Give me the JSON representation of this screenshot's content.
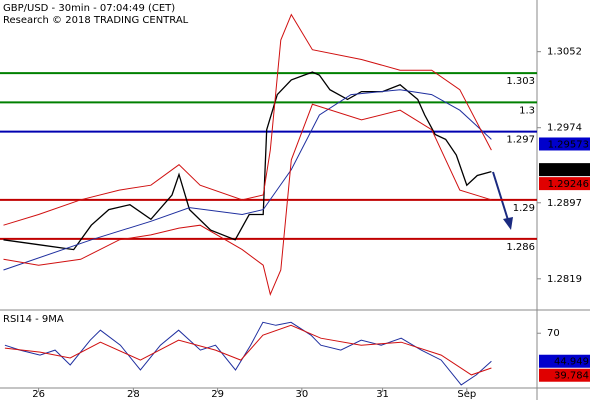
{
  "chart_data": [
    {
      "type": "line",
      "title": "GBP/USD - 30min - 07:04:49 (CET)",
      "subtitle": "Research © 2018 TRADING CENTRAL",
      "xlim": [
        0,
        153
      ],
      "ylim": [
        1.2787,
        1.3105
      ],
      "yticks": [
        1.3052,
        1.2974,
        1.2897,
        1.2819
      ],
      "series": [
        {
          "color": "#000000",
          "x": [
            1,
            11,
            21,
            26,
            31,
            37,
            43,
            49,
            51,
            54,
            60,
            67,
            71,
            75,
            76,
            79,
            83,
            89,
            91,
            94,
            99,
            103,
            109,
            114,
            119,
            121,
            124,
            127,
            130,
            133,
            136,
            140
          ],
          "values": [
            1.2859,
            1.2854,
            1.2849,
            1.2874,
            1.289,
            1.2895,
            1.288,
            1.2905,
            1.2926,
            1.289,
            1.2869,
            1.2859,
            1.2885,
            1.2885,
            1.2972,
            1.3008,
            1.3023,
            1.3031,
            1.3028,
            1.3013,
            1.3003,
            1.3011,
            1.3011,
            1.3018,
            1.3003,
            1.2987,
            1.2967,
            1.2962,
            1.2946,
            1.2915,
            1.2925,
            1.2929
          ]
        },
        {
          "color": "#1f2f9f",
          "x": [
            1,
            26,
            43,
            54,
            69,
            75,
            83,
            91,
            100,
            114,
            123,
            131,
            140
          ],
          "values": [
            1.2828,
            1.2859,
            1.2878,
            1.2892,
            1.2885,
            1.289,
            1.2931,
            1.2987,
            1.3008,
            1.3013,
            1.3008,
            1.2992,
            1.2962
          ]
        },
        {
          "color": "#d01010",
          "x": [
            1,
            11,
            23,
            34,
            43,
            51,
            57,
            69,
            75,
            77,
            80,
            83,
            89,
            103,
            114,
            123,
            131,
            140
          ],
          "values": [
            1.2874,
            1.2885,
            1.29,
            1.291,
            1.2915,
            1.2936,
            1.2915,
            1.29,
            1.2905,
            1.2951,
            1.3064,
            1.309,
            1.3054,
            1.3044,
            1.3033,
            1.3033,
            1.3013,
            1.2951
          ]
        },
        {
          "color": "#d01010",
          "x": [
            1,
            11,
            23,
            34,
            43,
            51,
            57,
            69,
            75,
            77,
            80,
            83,
            89,
            103,
            114,
            123,
            131,
            140
          ],
          "values": [
            1.2839,
            1.2833,
            1.2839,
            1.2859,
            1.2864,
            1.2871,
            1.2874,
            1.2849,
            1.2833,
            1.2803,
            1.2828,
            1.2941,
            1.2998,
            1.2982,
            1.2992,
            1.2972,
            1.291,
            1.29
          ]
        }
      ],
      "levels": [
        {
          "value": 1.303,
          "color": "#008000"
        },
        {
          "value": 1.3,
          "color": "#008000"
        },
        {
          "value": 1.297,
          "color": "#0000b0"
        },
        {
          "value": 1.29,
          "color": "#c00000"
        },
        {
          "value": 1.286,
          "color": "#c00000"
        }
      ],
      "markers": [
        {
          "value": 1.29573,
          "color": "#0000cc",
          "text_color": "#ffffff"
        },
        {
          "value": 1.2931,
          "color": "#000000",
          "text_color": "#ffffff"
        },
        {
          "value": 1.29246,
          "color": "#e00000",
          "text_color": "#000000"
        }
      ]
    },
    {
      "type": "line",
      "title": "RSI14 - 9MA",
      "xlim": [
        0,
        153
      ],
      "ylim": [
        21,
        89
      ],
      "yticks": [
        70
      ],
      "xticks": [
        {
          "value": 11,
          "label": "26"
        },
        {
          "value": 38,
          "label": "28"
        },
        {
          "value": 62,
          "label": "29"
        },
        {
          "value": 86,
          "label": "30"
        },
        {
          "value": 109,
          "label": "31"
        },
        {
          "value": 133,
          "label": "Sep"
        }
      ],
      "series": [
        {
          "color": "#1f2f9f",
          "x": [
            1.4,
            5.7,
            11.4,
            15.7,
            20,
            25.7,
            28.6,
            34.3,
            40,
            45.7,
            50.9,
            57.1,
            61.4,
            67.1,
            71.4,
            74.9,
            78.6,
            82.9,
            88.6,
            91.4,
            97.1,
            102.9,
            108.6,
            114.3,
            120,
            125.7,
            131.4,
            135.7,
            140
          ],
          "values": [
            59.3,
            54.9,
            50.4,
            54.9,
            41.6,
            63.8,
            72.7,
            59.3,
            37.1,
            59.3,
            72.7,
            54.9,
            59.3,
            37.1,
            59.3,
            79.8,
            77.1,
            79.8,
            68.2,
            59.3,
            54.9,
            63.8,
            59.3,
            65.6,
            54.9,
            46,
            23.8,
            32.7,
            44.9
          ]
        },
        {
          "color": "#d01010",
          "x": [
            1.4,
            11.4,
            20,
            28.6,
            40,
            50.9,
            61.4,
            68.6,
            74.9,
            82.9,
            91.4,
            102.9,
            114.3,
            125.7,
            134.3,
            140
          ],
          "values": [
            56.7,
            53.1,
            47.8,
            62,
            46,
            63.8,
            54.9,
            46,
            68.2,
            77.1,
            65.6,
            59.3,
            62,
            50.4,
            32.7,
            38.9
          ]
        }
      ],
      "markers": [
        {
          "value": 44.949,
          "color": "#0000cc",
          "text_color": "#ffffff"
        },
        {
          "value": 39.784,
          "color": "#e00000",
          "text_color": "#000000"
        }
      ]
    }
  ]
}
